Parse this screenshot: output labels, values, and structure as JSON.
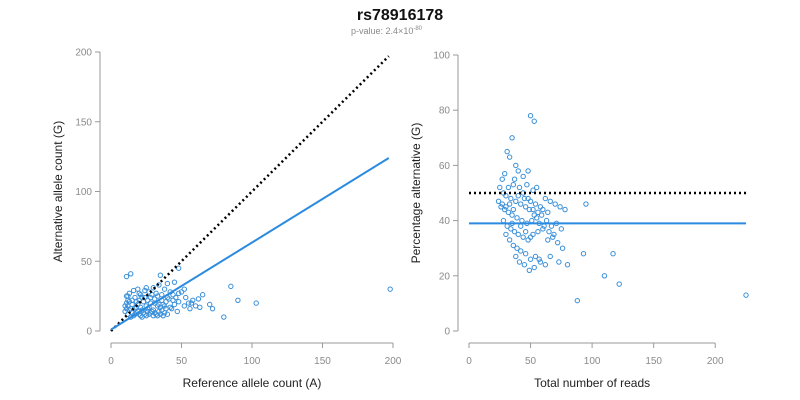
{
  "title": "rs78916178",
  "subtitle": {
    "prefix": "p-value: 2.4×10",
    "exponent": "-80"
  },
  "colors": {
    "points": "#3a8fd9",
    "fit_line": "#2b8be0",
    "reference_line": "#000000",
    "axis": "#9a9a9a"
  },
  "chart_data": [
    {
      "type": "scatter",
      "xlabel": "Reference allele count (A)",
      "ylabel": "Alternative allele count (G)",
      "xlim": [
        0,
        200
      ],
      "ylim": [
        0,
        200
      ],
      "xticks": [
        0,
        50,
        100,
        150,
        200
      ],
      "yticks": [
        0,
        50,
        100,
        150,
        200
      ],
      "reference_line": {
        "style": "dotted",
        "points": [
          [
            0,
            0
          ],
          [
            197,
            197
          ]
        ]
      },
      "fit_line": {
        "style": "solid",
        "points": [
          [
            0,
            1
          ],
          [
            197,
            124
          ]
        ]
      },
      "points": [
        [
          11,
          39
        ],
        [
          14,
          41
        ],
        [
          35,
          40
        ],
        [
          48,
          45
        ],
        [
          34,
          33
        ],
        [
          40,
          34
        ],
        [
          45,
          35
        ],
        [
          38,
          30
        ],
        [
          42,
          28
        ],
        [
          30,
          31
        ],
        [
          27,
          28
        ],
        [
          25,
          31
        ],
        [
          22,
          24
        ],
        [
          20,
          27
        ],
        [
          18,
          21
        ],
        [
          15,
          22
        ],
        [
          12,
          22
        ],
        [
          10,
          18
        ],
        [
          13,
          15
        ],
        [
          17,
          16
        ],
        [
          19,
          19
        ],
        [
          21,
          17
        ],
        [
          23,
          21
        ],
        [
          26,
          22
        ],
        [
          28,
          24
        ],
        [
          31,
          23
        ],
        [
          33,
          25
        ],
        [
          36,
          22
        ],
        [
          39,
          21
        ],
        [
          41,
          23
        ],
        [
          44,
          26
        ],
        [
          46,
          24
        ],
        [
          50,
          28
        ],
        [
          52,
          30
        ],
        [
          55,
          20
        ],
        [
          58,
          22
        ],
        [
          60,
          18
        ],
        [
          63,
          17
        ],
        [
          65,
          26
        ],
        [
          70,
          19
        ],
        [
          72,
          16
        ],
        [
          12,
          12
        ],
        [
          14,
          10
        ],
        [
          16,
          11
        ],
        [
          18,
          13
        ],
        [
          20,
          12
        ],
        [
          22,
          10
        ],
        [
          24,
          12
        ],
        [
          26,
          14
        ],
        [
          28,
          13
        ],
        [
          30,
          11
        ],
        [
          32,
          12
        ],
        [
          34,
          14
        ],
        [
          36,
          15
        ],
        [
          38,
          13
        ],
        [
          40,
          12
        ],
        [
          43,
          16
        ],
        [
          47,
          14
        ],
        [
          10,
          14
        ],
        [
          11,
          25
        ],
        [
          13,
          27
        ],
        [
          16,
          29
        ],
        [
          19,
          30
        ],
        [
          24,
          29
        ],
        [
          29,
          26
        ],
        [
          15,
          19
        ],
        [
          17,
          24
        ],
        [
          21,
          26
        ],
        [
          25,
          18
        ],
        [
          27,
          17
        ],
        [
          31,
          20
        ],
        [
          33,
          18
        ],
        [
          35,
          17
        ],
        [
          37,
          19
        ],
        [
          39,
          16
        ],
        [
          12,
          18
        ],
        [
          14,
          16
        ],
        [
          18,
          17
        ],
        [
          22,
          15
        ],
        [
          26,
          16
        ],
        [
          30,
          15
        ],
        [
          34,
          19
        ],
        [
          38,
          18
        ],
        [
          42,
          17
        ],
        [
          45,
          19
        ],
        [
          48,
          21
        ],
        [
          52,
          18
        ],
        [
          56,
          16
        ],
        [
          85,
          32
        ],
        [
          90,
          22
        ],
        [
          103,
          20
        ],
        [
          80,
          10
        ],
        [
          198,
          30
        ],
        [
          11,
          20
        ],
        [
          13,
          21
        ],
        [
          15,
          13
        ],
        [
          17,
          12
        ],
        [
          19,
          14
        ],
        [
          21,
          11
        ],
        [
          23,
          13
        ],
        [
          25,
          11
        ],
        [
          27,
          12
        ],
        [
          29,
          14
        ],
        [
          31,
          13
        ],
        [
          33,
          11
        ],
        [
          35,
          12
        ],
        [
          37,
          11
        ],
        [
          11,
          16
        ],
        [
          12,
          25
        ],
        [
          20,
          22
        ],
        [
          24,
          24
        ],
        [
          28,
          20
        ],
        [
          32,
          27
        ],
        [
          36,
          26
        ],
        [
          40,
          24
        ],
        [
          44,
          22
        ],
        [
          48,
          27
        ],
        [
          53,
          24
        ],
        [
          57,
          20
        ],
        [
          62,
          23
        ]
      ]
    },
    {
      "type": "scatter",
      "xlabel": "Total number of reads",
      "ylabel": "Percentage alternative (G)",
      "xlim": [
        0,
        225
      ],
      "ylim": [
        0,
        100
      ],
      "xticks": [
        0,
        50,
        100,
        150,
        200
      ],
      "yticks": [
        0,
        20,
        40,
        60,
        80,
        100
      ],
      "reference_line": {
        "style": "dotted",
        "y": 50,
        "x_range": [
          0,
          225
        ]
      },
      "fit_line": {
        "style": "solid",
        "y": 39,
        "x_range": [
          0,
          225
        ]
      },
      "points": [
        [
          50,
          78
        ],
        [
          53,
          76
        ],
        [
          35,
          70
        ],
        [
          31,
          65
        ],
        [
          33,
          63
        ],
        [
          38,
          60
        ],
        [
          40,
          58
        ],
        [
          48,
          58
        ],
        [
          44,
          56
        ],
        [
          29,
          57
        ],
        [
          27,
          55
        ],
        [
          36,
          53
        ],
        [
          41,
          52
        ],
        [
          47,
          53
        ],
        [
          52,
          51
        ],
        [
          55,
          52
        ],
        [
          25,
          52
        ],
        [
          28,
          50
        ],
        [
          30,
          49
        ],
        [
          34,
          48
        ],
        [
          38,
          47
        ],
        [
          42,
          46
        ],
        [
          46,
          45
        ],
        [
          50,
          47
        ],
        [
          54,
          46
        ],
        [
          58,
          45
        ],
        [
          62,
          48
        ],
        [
          66,
          47
        ],
        [
          70,
          46
        ],
        [
          74,
          45
        ],
        [
          78,
          44
        ],
        [
          95,
          46
        ],
        [
          26,
          45
        ],
        [
          29,
          44
        ],
        [
          32,
          43
        ],
        [
          35,
          42
        ],
        [
          39,
          41
        ],
        [
          43,
          40
        ],
        [
          47,
          39
        ],
        [
          51,
          40
        ],
        [
          55,
          41
        ],
        [
          59,
          42
        ],
        [
          63,
          40
        ],
        [
          67,
          38
        ],
        [
          71,
          39
        ],
        [
          75,
          37
        ],
        [
          28,
          40
        ],
        [
          31,
          38
        ],
        [
          34,
          37
        ],
        [
          37,
          36
        ],
        [
          40,
          35
        ],
        [
          44,
          34
        ],
        [
          48,
          33
        ],
        [
          52,
          35
        ],
        [
          56,
          36
        ],
        [
          60,
          37
        ],
        [
          64,
          33
        ],
        [
          68,
          34
        ],
        [
          72,
          32
        ],
        [
          76,
          30
        ],
        [
          30,
          35
        ],
        [
          33,
          33
        ],
        [
          36,
          31
        ],
        [
          39,
          30
        ],
        [
          42,
          29
        ],
        [
          46,
          28
        ],
        [
          50,
          26
        ],
        [
          54,
          27
        ],
        [
          58,
          25
        ],
        [
          62,
          24
        ],
        [
          66,
          27
        ],
        [
          73,
          25
        ],
        [
          38,
          27
        ],
        [
          41,
          25
        ],
        [
          45,
          24
        ],
        [
          49,
          22
        ],
        [
          53,
          23
        ],
        [
          57,
          26
        ],
        [
          80,
          24
        ],
        [
          93,
          28
        ],
        [
          110,
          20
        ],
        [
          117,
          28
        ],
        [
          122,
          17
        ],
        [
          88,
          11
        ],
        [
          225,
          13
        ],
        [
          24,
          47
        ],
        [
          27,
          46
        ],
        [
          30,
          45
        ],
        [
          33,
          46
        ],
        [
          36,
          44
        ],
        [
          40,
          49
        ],
        [
          44,
          50
        ],
        [
          48,
          48
        ],
        [
          52,
          44
        ],
        [
          56,
          43
        ],
        [
          60,
          44
        ],
        [
          64,
          43
        ],
        [
          32,
          52
        ],
        [
          37,
          55
        ],
        [
          45,
          48
        ],
        [
          49,
          44
        ],
        [
          53,
          42
        ],
        [
          57,
          39
        ],
        [
          61,
          38
        ],
        [
          65,
          36
        ],
        [
          69,
          35
        ],
        [
          42,
          38
        ],
        [
          46,
          36
        ],
        [
          50,
          34
        ],
        [
          35,
          39
        ]
      ]
    }
  ]
}
